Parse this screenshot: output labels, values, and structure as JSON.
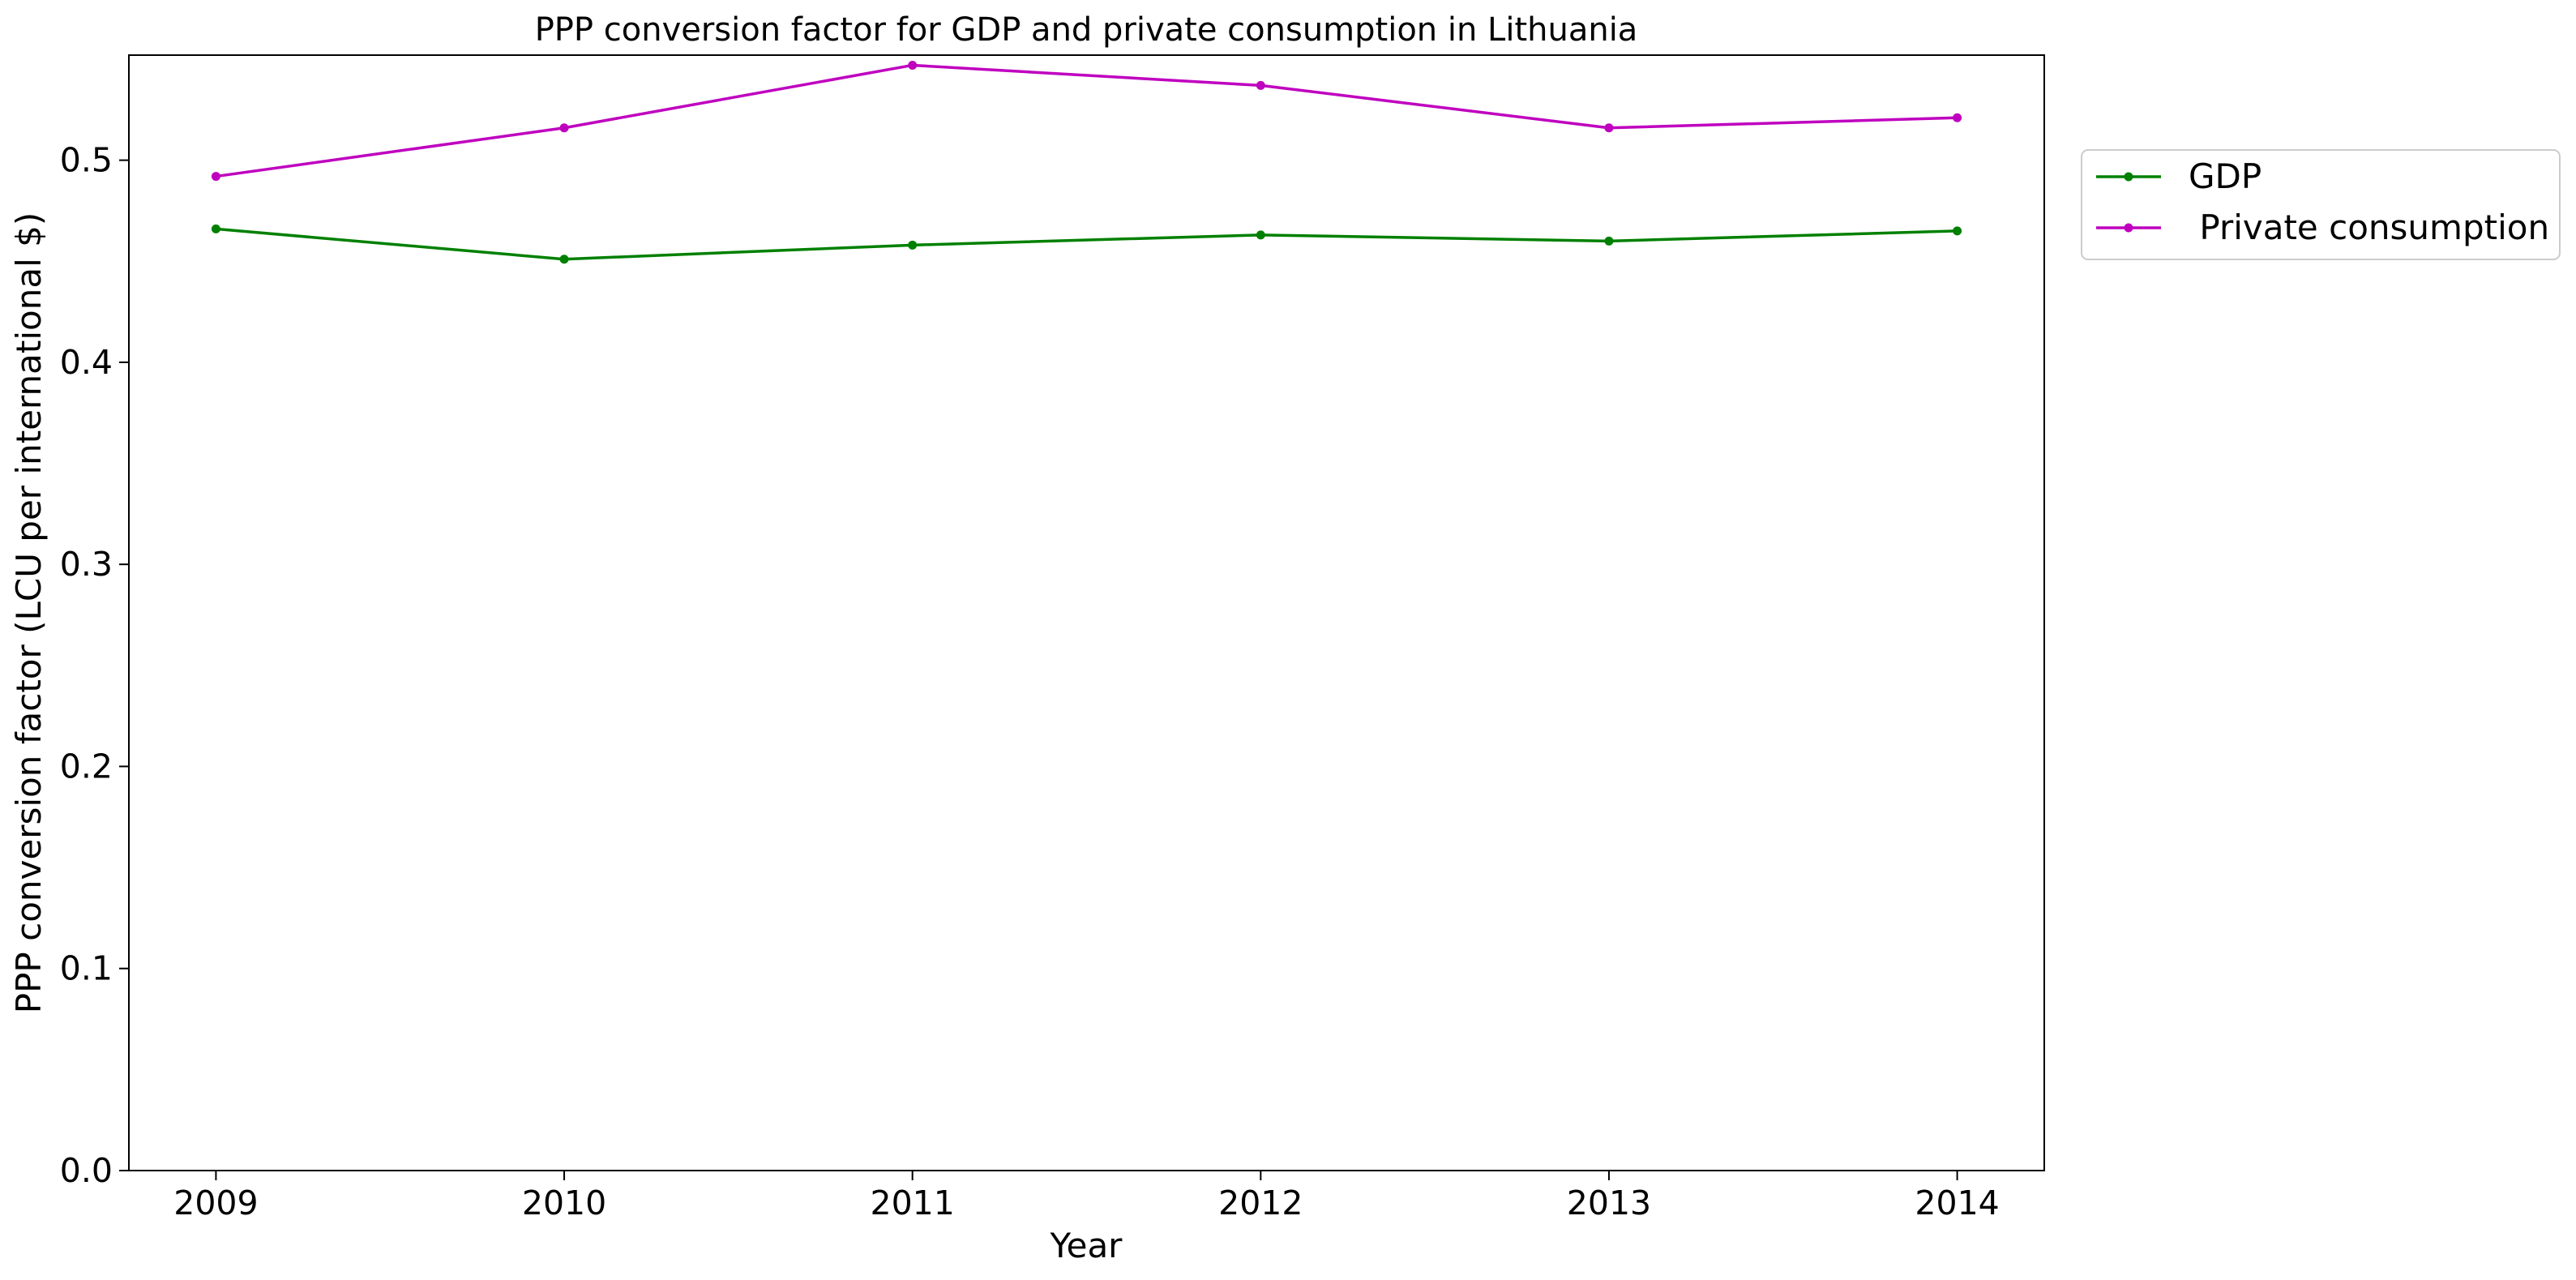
{
  "chart_data": {
    "type": "line",
    "title": "PPP conversion factor for GDP and private consumption in Lithuania",
    "xlabel": "Year",
    "ylabel": "PPP conversion factor (LCU per international $)",
    "x": [
      2009,
      2010,
      2011,
      2012,
      2013,
      2014
    ],
    "x_tick_labels": [
      "2009",
      "2010",
      "2011",
      "2012",
      "2013",
      "2014"
    ],
    "xlim": [
      2008.75,
      2014.25
    ],
    "ylim": [
      0,
      0.552
    ],
    "y_ticks": [
      0.0,
      0.1,
      0.2,
      0.3,
      0.4,
      0.5
    ],
    "y_tick_labels": [
      "0.0",
      "0.1",
      "0.2",
      "0.3",
      "0.4",
      "0.5"
    ],
    "grid": false,
    "legend_position": "outside-right-top",
    "series": [
      {
        "name": "GDP",
        "color": "#008000",
        "values": [
          0.466,
          0.451,
          0.458,
          0.463,
          0.46,
          0.465
        ]
      },
      {
        "name": " Private consumption",
        "color": "#bf00bf",
        "values": [
          0.492,
          0.516,
          0.547,
          0.537,
          0.516,
          0.521
        ]
      }
    ]
  }
}
